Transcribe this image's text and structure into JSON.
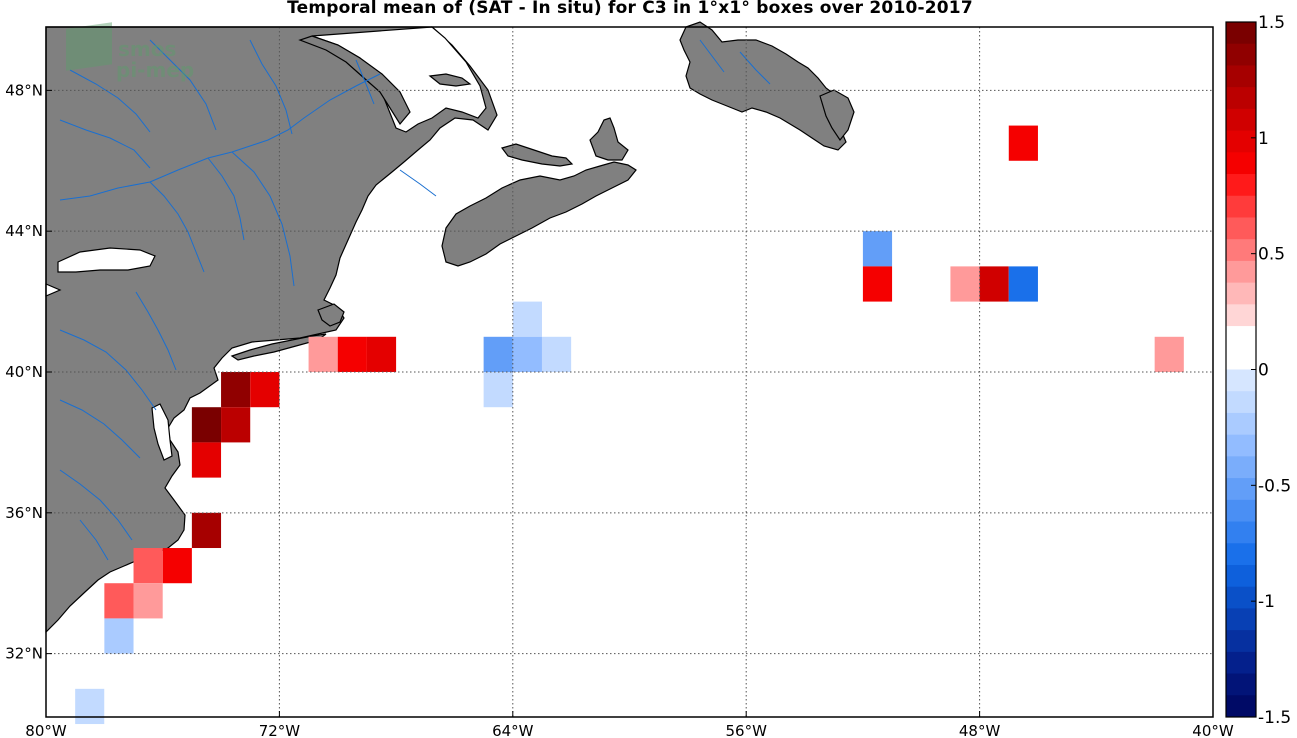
{
  "title": "Temporal mean of (SAT - In situ) for C3 in 1°x1° boxes over 2010-2017",
  "watermark": {
    "line1": "smos",
    "line2": "pi-mep"
  },
  "map": {
    "lon_range": [
      -80,
      -40
    ],
    "lat_range": [
      30.2,
      49.8
    ],
    "lon_ticks": [
      {
        "value": -80,
        "label": "80°W"
      },
      {
        "value": -72,
        "label": "72°W"
      },
      {
        "value": -64,
        "label": "64°W"
      },
      {
        "value": -56,
        "label": "56°W"
      },
      {
        "value": -48,
        "label": "48°W"
      },
      {
        "value": -40,
        "label": "40°W"
      }
    ],
    "lat_ticks": [
      {
        "value": 32,
        "label": "32°N"
      },
      {
        "value": 36,
        "label": "36°N"
      },
      {
        "value": 40,
        "label": "40°N"
      },
      {
        "value": 44,
        "label": "44°N"
      },
      {
        "value": 48,
        "label": "48°N"
      }
    ],
    "grid": "dotted",
    "land_color": "#808080",
    "river_color": "#1a6fd0",
    "ocean_color": "#ffffff"
  },
  "colorbar": {
    "range": [
      -1.5,
      1.5
    ],
    "ticks": [
      {
        "value": 1.5,
        "label": "1.5"
      },
      {
        "value": 1,
        "label": "1"
      },
      {
        "value": 0.5,
        "label": "0.5"
      },
      {
        "value": 0,
        "label": "0"
      },
      {
        "value": -0.5,
        "label": "-0.5"
      },
      {
        "value": -1,
        "label": "-1"
      },
      {
        "value": -1.5,
        "label": "-1.5"
      }
    ],
    "colors_top_to_bottom": [
      "#7a0000",
      "#900000",
      "#a60000",
      "#bb0000",
      "#d00000",
      "#e40000",
      "#f50000",
      "#ff1a1a",
      "#ff3b3b",
      "#ff5a5a",
      "#ff7a7a",
      "#ff9a9a",
      "#ffb8b8",
      "#ffd6d6",
      "#ffffff",
      "#ffffff",
      "#d6e6ff",
      "#c2daff",
      "#aacbff",
      "#92bcff",
      "#7aadfb",
      "#629ef8",
      "#4a8ff4",
      "#3280f0",
      "#1a70ea",
      "#0e60dc",
      "#0a50c8",
      "#0840b4",
      "#0630a0",
      "#04208c",
      "#021478",
      "#000a66"
    ]
  },
  "chart_data": {
    "type": "heatmap",
    "title": "Temporal mean of (SAT - In situ) for C3 in 1°x1° boxes over 2010-2017",
    "cell_size_deg": 1,
    "value_range": [
      -1.5,
      1.5
    ],
    "cells": [
      {
        "lon": -46.5,
        "lat": 46.5,
        "value": 0.9
      },
      {
        "lon": -51.5,
        "lat": 43.5,
        "value": -0.5
      },
      {
        "lon": -51.5,
        "lat": 42.5,
        "value": 0.9
      },
      {
        "lon": -48.5,
        "lat": 42.5,
        "value": 0.45
      },
      {
        "lon": -47.5,
        "lat": 42.5,
        "value": 1.1
      },
      {
        "lon": -46.5,
        "lat": 42.5,
        "value": -0.75
      },
      {
        "lon": -63.5,
        "lat": 41.5,
        "value": -0.1
      },
      {
        "lon": -64.5,
        "lat": 40.5,
        "value": -0.55
      },
      {
        "lon": -63.5,
        "lat": 40.5,
        "value": -0.35
      },
      {
        "lon": -62.5,
        "lat": 40.5,
        "value": -0.1
      },
      {
        "lon": -64.5,
        "lat": 39.5,
        "value": -0.1
      },
      {
        "lon": -70.5,
        "lat": 40.5,
        "value": 0.4
      },
      {
        "lon": -69.5,
        "lat": 40.5,
        "value": 0.9
      },
      {
        "lon": -68.5,
        "lat": 40.5,
        "value": 0.95
      },
      {
        "lon": -41.5,
        "lat": 40.5,
        "value": 0.4
      },
      {
        "lon": -73.5,
        "lat": 39.5,
        "value": 1.35
      },
      {
        "lon": -72.5,
        "lat": 39.5,
        "value": 0.95
      },
      {
        "lon": -74.5,
        "lat": 38.5,
        "value": 1.45
      },
      {
        "lon": -73.5,
        "lat": 38.5,
        "value": 1.15
      },
      {
        "lon": -74.5,
        "lat": 37.5,
        "value": 0.95
      },
      {
        "lon": -74.5,
        "lat": 35.5,
        "value": 1.3
      },
      {
        "lon": -75.5,
        "lat": 34.5,
        "value": 0.85
      },
      {
        "lon": -76.5,
        "lat": 34.5,
        "value": 0.65
      },
      {
        "lon": -77.5,
        "lat": 33.5,
        "value": 0.6
      },
      {
        "lon": -76.5,
        "lat": 33.5,
        "value": 0.4
      },
      {
        "lon": -78.5,
        "lat": 32.5,
        "value": 0.15
      },
      {
        "lon": -77.5,
        "lat": 32.5,
        "value": -0.25
      },
      {
        "lon": -78.5,
        "lat": 30.5,
        "value": -0.1
      },
      {
        "lon": -77.5,
        "lat": 30.5,
        "value": 0.15
      }
    ]
  }
}
